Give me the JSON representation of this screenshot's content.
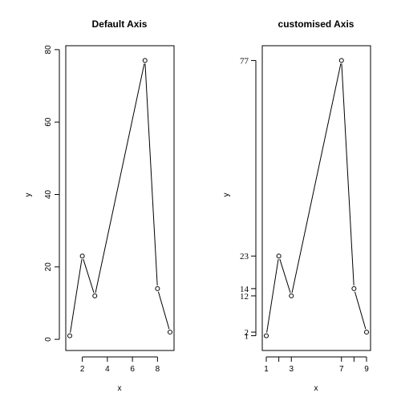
{
  "chart_data": [
    {
      "type": "line",
      "title": "Default Axis",
      "xlabel": "x",
      "ylabel": "y",
      "x": [
        1,
        2,
        3,
        7,
        8,
        9
      ],
      "y": [
        1,
        23,
        12,
        77,
        14,
        2
      ],
      "xlim": [
        0.68,
        9.32
      ],
      "ylim": [
        -3.08,
        81.08
      ],
      "xticks": [
        2,
        4,
        6,
        8
      ],
      "yticks": [
        0,
        20,
        40,
        60,
        80
      ],
      "marker": "open-circle",
      "grid": false,
      "legend": "none"
    },
    {
      "type": "line",
      "title": "customised Axis",
      "xlabel": "x",
      "ylabel": "y",
      "x": [
        1,
        2,
        3,
        7,
        8,
        9
      ],
      "y": [
        1,
        23,
        12,
        77,
        14,
        2
      ],
      "xlim": [
        0.68,
        9.32
      ],
      "ylim": [
        -3.08,
        81.08
      ],
      "xticks": [
        1,
        3,
        7,
        9
      ],
      "xticks_unlabeled": [
        2,
        8
      ],
      "yticks": [
        1,
        2,
        12,
        14,
        23,
        77
      ],
      "marker": "open-circle",
      "grid": false,
      "legend": "none"
    }
  ]
}
